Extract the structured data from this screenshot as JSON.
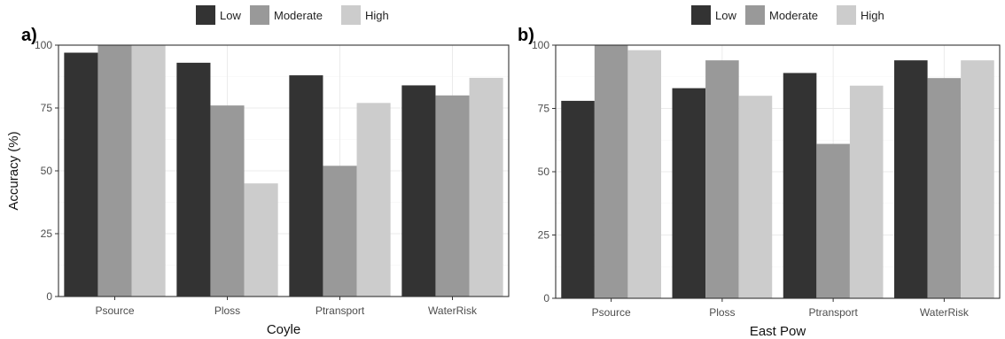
{
  "legend": {
    "items": [
      {
        "label": "Low",
        "color": "#333333"
      },
      {
        "label": "Moderate",
        "color": "#999999"
      },
      {
        "label": "High",
        "color": "#cccccc"
      }
    ]
  },
  "chart_data": [
    {
      "type": "bar",
      "panel_label": "a)",
      "categories": [
        "Psource",
        "Ploss",
        "Ptransport",
        "WaterRisk"
      ],
      "series": [
        {
          "name": "Low",
          "color": "#333333",
          "values": [
            97,
            93,
            88,
            84
          ]
        },
        {
          "name": "Moderate",
          "color": "#999999",
          "values": [
            100,
            76,
            52,
            80
          ]
        },
        {
          "name": "High",
          "color": "#cccccc",
          "values": [
            100,
            45,
            77,
            87
          ]
        }
      ],
      "xlabel": "Coyle",
      "ylabel": "Accuracy (%)",
      "ylim": [
        0,
        100
      ],
      "yticks": [
        0,
        25,
        50,
        75,
        100
      ],
      "grid": true,
      "legend_position": "top"
    },
    {
      "type": "bar",
      "panel_label": "b)",
      "categories": [
        "Psource",
        "Ploss",
        "Ptransport",
        "WaterRisk"
      ],
      "series": [
        {
          "name": "Low",
          "color": "#333333",
          "values": [
            78,
            83,
            89,
            94
          ]
        },
        {
          "name": "Moderate",
          "color": "#999999",
          "values": [
            100,
            94,
            61,
            87
          ]
        },
        {
          "name": "High",
          "color": "#cccccc",
          "values": [
            98,
            80,
            84,
            94
          ]
        }
      ],
      "xlabel": "East Pow",
      "ylabel": "",
      "ylim": [
        0,
        100
      ],
      "yticks": [
        0,
        25,
        50,
        75,
        100
      ],
      "grid": true,
      "legend_position": "top"
    }
  ]
}
